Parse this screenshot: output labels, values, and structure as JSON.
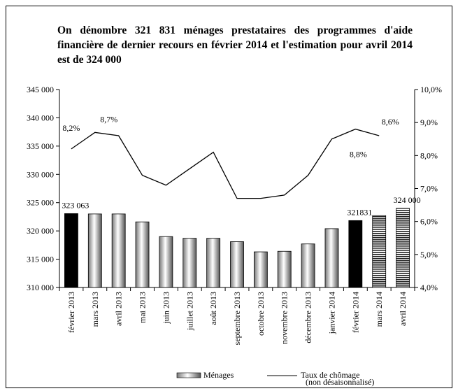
{
  "chart_data": {
    "type": "bar-line",
    "title": "On dénombre 321 831 ménages prestataires des programmes d'aide financière de dernier recours en février 2014 et l'estimation pour avril 2014 est de 324 000",
    "categories": [
      "février 2013",
      "mars 2013",
      "avril 2013",
      "mai 2013",
      "juin 2013",
      "juillet 2013",
      "août 2013",
      "septembre 2013",
      "octobre 2013",
      "novembre 2013",
      "décembre 2013",
      "janvier 2014",
      "février 2014",
      "mars 2014",
      "avril 2014"
    ],
    "series": [
      {
        "name": "Ménages",
        "type": "bar",
        "values": [
          323063,
          323000,
          323000,
          321600,
          319000,
          318700,
          318700,
          318100,
          316300,
          316400,
          317700,
          320400,
          321831,
          322700,
          324000
        ],
        "value_labels": [
          "323 063",
          null,
          null,
          null,
          null,
          null,
          null,
          null,
          null,
          null,
          null,
          null,
          "321831",
          null,
          "324 000"
        ],
        "bar_styles": [
          "solid",
          "gradient",
          "gradient",
          "gradient",
          "gradient",
          "gradient",
          "gradient",
          "gradient",
          "gradient",
          "gradient",
          "gradient",
          "gradient",
          "solid",
          "striped",
          "striped"
        ],
        "color": "#000000"
      },
      {
        "name": "Taux de chômage",
        "name_note": "(non désaisonnalisé)",
        "type": "line",
        "axis": "y2",
        "values": [
          8.2,
          8.7,
          8.6,
          7.4,
          7.1,
          7.6,
          8.1,
          6.7,
          6.7,
          6.8,
          7.4,
          8.5,
          8.8,
          8.6,
          null
        ],
        "value_labels": [
          "8,2%",
          "8,7%",
          null,
          null,
          null,
          null,
          null,
          null,
          null,
          null,
          null,
          null,
          "8,8%",
          "8,6%",
          null
        ],
        "color": "#000000"
      }
    ],
    "ylim": [
      310000,
      345000
    ],
    "yticks": [
      {
        "value": 310000,
        "label": "310 000"
      },
      {
        "value": 315000,
        "label": "315 000"
      },
      {
        "value": 320000,
        "label": "320 000"
      },
      {
        "value": 325000,
        "label": "325 000"
      },
      {
        "value": 330000,
        "label": "330 000"
      },
      {
        "value": 335000,
        "label": "335 000"
      },
      {
        "value": 340000,
        "label": "340 000"
      },
      {
        "value": 345000,
        "label": "345 000"
      }
    ],
    "y2lim": [
      4,
      10
    ],
    "y2ticks": [
      {
        "value": 4,
        "label": "4,0%"
      },
      {
        "value": 5,
        "label": "5,0%"
      },
      {
        "value": 6,
        "label": "6,0%"
      },
      {
        "value": 7,
        "label": "7,0%"
      },
      {
        "value": 8,
        "label": "8,0%"
      },
      {
        "value": 9,
        "label": "9,0%"
      },
      {
        "value": 10,
        "label": "10,0%"
      }
    ],
    "legend": "bottom"
  }
}
